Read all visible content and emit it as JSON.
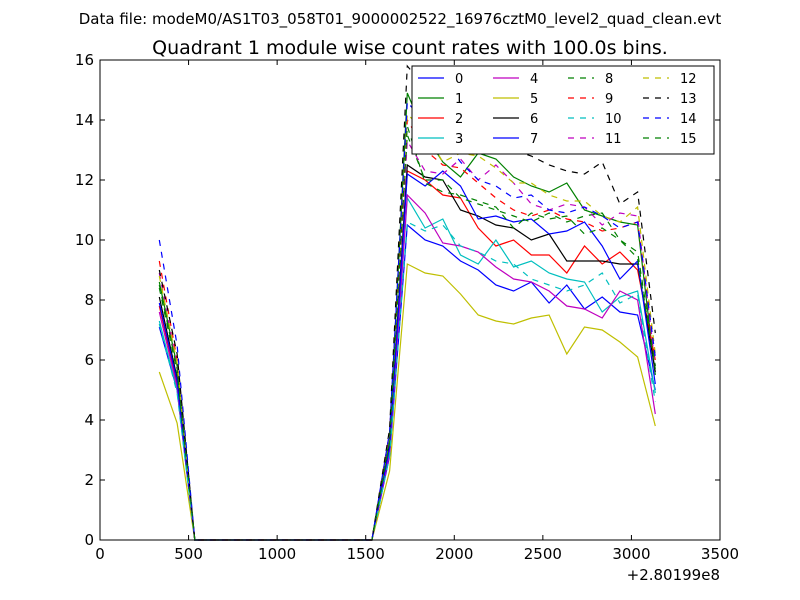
{
  "chart_data": {
    "type": "line",
    "suptitle": "Data file: modeM0/AS1T03_058T01_9000002522_16976cztM0_level2_quad_clean.evt",
    "title": "Quadrant 1 module wise count rates with 100.0s bins.",
    "xlabel": "",
    "ylabel": "",
    "x_offset_label": "+2.80199e8",
    "xlim": [
      0,
      3500
    ],
    "ylim": [
      0,
      16
    ],
    "xticks": [
      0,
      500,
      1000,
      1500,
      2000,
      2500,
      3000,
      3500
    ],
    "yticks": [
      0,
      2,
      4,
      6,
      8,
      10,
      12,
      14,
      16
    ],
    "grid": false,
    "legend_position": "top-right",
    "legend_columns": 4,
    "x": [
      335,
      435,
      535,
      635,
      735,
      835,
      935,
      1035,
      1135,
      1235,
      1335,
      1435,
      1535,
      1635,
      1735,
      1835,
      1935,
      2035,
      2135,
      2235,
      2335,
      2435,
      2535,
      2635,
      2735,
      2835,
      2935,
      3035,
      3135
    ],
    "series": [
      {
        "name": "0",
        "color": "#0000ff",
        "dash": "solid",
        "values": [
          7.1,
          5.0,
          0,
          0,
          0,
          0,
          0,
          0,
          0,
          0,
          0,
          0,
          0,
          2.8,
          10.5,
          10.0,
          9.8,
          9.3,
          9.0,
          8.5,
          8.3,
          8.6,
          7.9,
          8.5,
          7.7,
          8.1,
          7.6,
          7.5,
          5.0
        ]
      },
      {
        "name": "1",
        "color": "#008000",
        "dash": "solid",
        "values": [
          8.6,
          5.8,
          0,
          0,
          0,
          0,
          0,
          0,
          0,
          0,
          0,
          0,
          0,
          3.4,
          14.9,
          13.5,
          12.6,
          12.1,
          12.9,
          12.7,
          12.1,
          11.8,
          11.6,
          11.9,
          11.0,
          10.8,
          10.6,
          10.5,
          5.5
        ]
      },
      {
        "name": "2",
        "color": "#ff0000",
        "dash": "solid",
        "values": [
          7.8,
          5.2,
          0,
          0,
          0,
          0,
          0,
          0,
          0,
          0,
          0,
          0,
          0,
          3.0,
          12.3,
          12.0,
          11.5,
          11.4,
          10.4,
          9.8,
          10.0,
          9.5,
          9.5,
          8.9,
          9.8,
          9.2,
          9.6,
          9.0,
          6.0
        ]
      },
      {
        "name": "3",
        "color": "#00bfbf",
        "dash": "solid",
        "values": [
          7.3,
          5.0,
          0,
          0,
          0,
          0,
          0,
          0,
          0,
          0,
          0,
          0,
          0,
          2.9,
          11.4,
          10.4,
          10.7,
          9.5,
          9.2,
          10.0,
          9.1,
          9.3,
          8.9,
          8.7,
          8.6,
          7.6,
          8.1,
          8.3,
          4.9
        ]
      },
      {
        "name": "4",
        "color": "#bf00bf",
        "dash": "solid",
        "values": [
          7.6,
          5.1,
          0,
          0,
          0,
          0,
          0,
          0,
          0,
          0,
          0,
          0,
          0,
          2.9,
          11.5,
          10.9,
          9.9,
          9.8,
          9.6,
          9.1,
          8.7,
          8.6,
          8.3,
          7.8,
          7.7,
          7.4,
          8.3,
          8.0,
          4.2
        ]
      },
      {
        "name": "5",
        "color": "#bfbf00",
        "dash": "solid",
        "values": [
          5.6,
          3.9,
          0,
          0,
          0,
          0,
          0,
          0,
          0,
          0,
          0,
          0,
          0,
          2.3,
          9.2,
          8.9,
          8.8,
          8.2,
          7.5,
          7.3,
          7.2,
          7.4,
          7.5,
          6.2,
          7.1,
          7.0,
          6.6,
          6.1,
          3.8
        ]
      },
      {
        "name": "6",
        "color": "#000000",
        "dash": "solid",
        "values": [
          8.1,
          5.4,
          0,
          0,
          0,
          0,
          0,
          0,
          0,
          0,
          0,
          0,
          0,
          3.2,
          12.5,
          12.1,
          12.0,
          11.0,
          10.8,
          10.5,
          10.4,
          10.0,
          10.2,
          9.3,
          9.3,
          9.3,
          9.2,
          9.2,
          5.6
        ]
      },
      {
        "name": "7",
        "color": "#0000ff",
        "dash": "solid",
        "values": [
          7.9,
          5.3,
          0,
          0,
          0,
          0,
          0,
          0,
          0,
          0,
          0,
          0,
          0,
          3.1,
          12.2,
          11.8,
          12.3,
          11.8,
          10.7,
          10.8,
          10.6,
          10.7,
          10.2,
          10.3,
          10.6,
          9.8,
          8.7,
          9.3,
          5.2
        ]
      },
      {
        "name": "8",
        "color": "#008000",
        "dash": "dashed",
        "values": [
          8.4,
          5.6,
          0,
          0,
          0,
          0,
          0,
          0,
          0,
          0,
          0,
          0,
          0,
          3.3,
          13.5,
          12.0,
          12.0,
          11.4,
          11.2,
          11.0,
          10.8,
          10.6,
          10.9,
          10.6,
          10.8,
          10.9,
          10.0,
          9.4,
          5.7
        ]
      },
      {
        "name": "9",
        "color": "#ff0000",
        "dash": "dashed",
        "values": [
          9.3,
          6.0,
          0,
          0,
          0,
          0,
          0,
          0,
          0,
          0,
          0,
          0,
          0,
          3.6,
          14.0,
          13.0,
          12.5,
          12.4,
          11.9,
          11.4,
          11.0,
          10.8,
          11.0,
          10.7,
          10.6,
          10.3,
          10.4,
          10.6,
          6.0
        ]
      },
      {
        "name": "10",
        "color": "#00bfbf",
        "dash": "dashed",
        "values": [
          7.2,
          4.9,
          0,
          0,
          0,
          0,
          0,
          0,
          0,
          0,
          0,
          0,
          0,
          2.8,
          10.6,
          10.3,
          10.5,
          9.8,
          9.6,
          9.3,
          9.2,
          8.7,
          8.5,
          8.3,
          8.5,
          8.9,
          7.9,
          8.2,
          4.6
        ]
      },
      {
        "name": "11",
        "color": "#bf00bf",
        "dash": "dashed",
        "values": [
          8.9,
          5.8,
          0,
          0,
          0,
          0,
          0,
          0,
          0,
          0,
          0,
          0,
          0,
          3.4,
          13.3,
          12.3,
          12.2,
          12.7,
          12.0,
          12.5,
          11.9,
          11.2,
          11.0,
          11.2,
          11.1,
          10.5,
          10.9,
          10.8,
          5.8
        ]
      },
      {
        "name": "12",
        "color": "#bfbf00",
        "dash": "dashed",
        "values": [
          8.8,
          5.9,
          0,
          0,
          0,
          0,
          0,
          0,
          0,
          0,
          0,
          0,
          0,
          3.5,
          14.2,
          13.6,
          12.6,
          12.9,
          12.8,
          12.4,
          11.9,
          11.9,
          11.5,
          11.3,
          11.3,
          10.8,
          10.6,
          11.1,
          6.2
        ]
      },
      {
        "name": "13",
        "color": "#000000",
        "dash": "dashed",
        "values": [
          9.0,
          6.2,
          0,
          0,
          0,
          0,
          0,
          0,
          0,
          0,
          0,
          0,
          0,
          3.7,
          15.8,
          15.1,
          14.5,
          14.3,
          13.7,
          13.6,
          13.0,
          12.8,
          12.5,
          12.3,
          12.2,
          12.6,
          11.2,
          11.6,
          6.9
        ]
      },
      {
        "name": "14",
        "color": "#0000ff",
        "dash": "dashed",
        "values": [
          10.0,
          6.5,
          0,
          0,
          0,
          0,
          0,
          0,
          0,
          0,
          0,
          0,
          0,
          3.6,
          14.6,
          13.9,
          13.4,
          12.6,
          12.0,
          11.8,
          11.4,
          11.5,
          11.0,
          10.9,
          11.1,
          10.8,
          10.4,
          10.6,
          6.1
        ]
      },
      {
        "name": "15",
        "color": "#008000",
        "dash": "dashed",
        "values": [
          8.5,
          5.7,
          0,
          0,
          0,
          0,
          0,
          0,
          0,
          0,
          0,
          0,
          0,
          3.3,
          13.8,
          11.9,
          11.6,
          11.5,
          11.3,
          11.1,
          10.4,
          10.9,
          10.7,
          10.8,
          10.2,
          10.4,
          10.0,
          9.6,
          5.8
        ]
      }
    ]
  }
}
